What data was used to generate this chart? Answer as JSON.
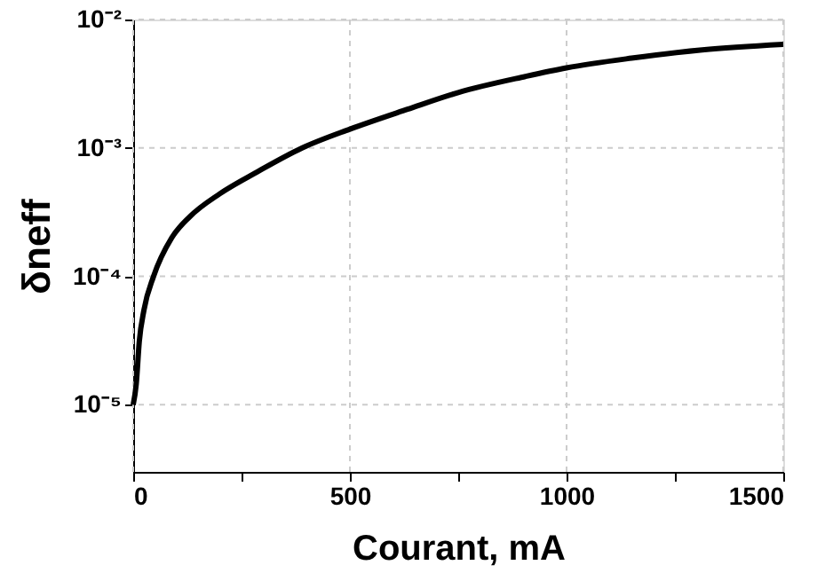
{
  "chart_data": {
    "type": "line",
    "xlabel": "Courant, mA",
    "ylabel": "δneff",
    "x": [
      0,
      7,
      14,
      25,
      47,
      89,
      130,
      200,
      286,
      390,
      500,
      633,
      750,
      905,
      1000,
      1150,
      1313,
      1500
    ],
    "series": [
      {
        "color": "#000000",
        "values": [
          1e-05,
          1.45e-05,
          3.1e-05,
          5.5e-05,
          0.0001,
          0.0002,
          0.00029,
          0.00044,
          0.00065,
          0.001,
          0.0014,
          0.002,
          0.0027,
          0.0036,
          0.0042,
          0.005,
          0.0058,
          0.0064
        ]
      }
    ],
    "xlim": [
      0,
      1500
    ],
    "xticks": [
      0,
      {
        "value": 250,
        "label": null
      },
      500,
      {
        "value": 750,
        "label": null
      },
      1000,
      {
        "value": 1250,
        "label": null
      },
      1500
    ],
    "ylim": [
      3e-06,
      0.01
    ],
    "yticks": [
      {
        "value": 1e-05,
        "label": "10⁻⁵"
      },
      {
        "value": 0.0001,
        "label": "10⁻⁴"
      },
      {
        "value": 0.001,
        "label": "10⁻³"
      },
      {
        "value": 0.01,
        "label": "10⁻²"
      }
    ],
    "log": "y",
    "grid": true,
    "marker": "none",
    "line_style": "solid"
  }
}
